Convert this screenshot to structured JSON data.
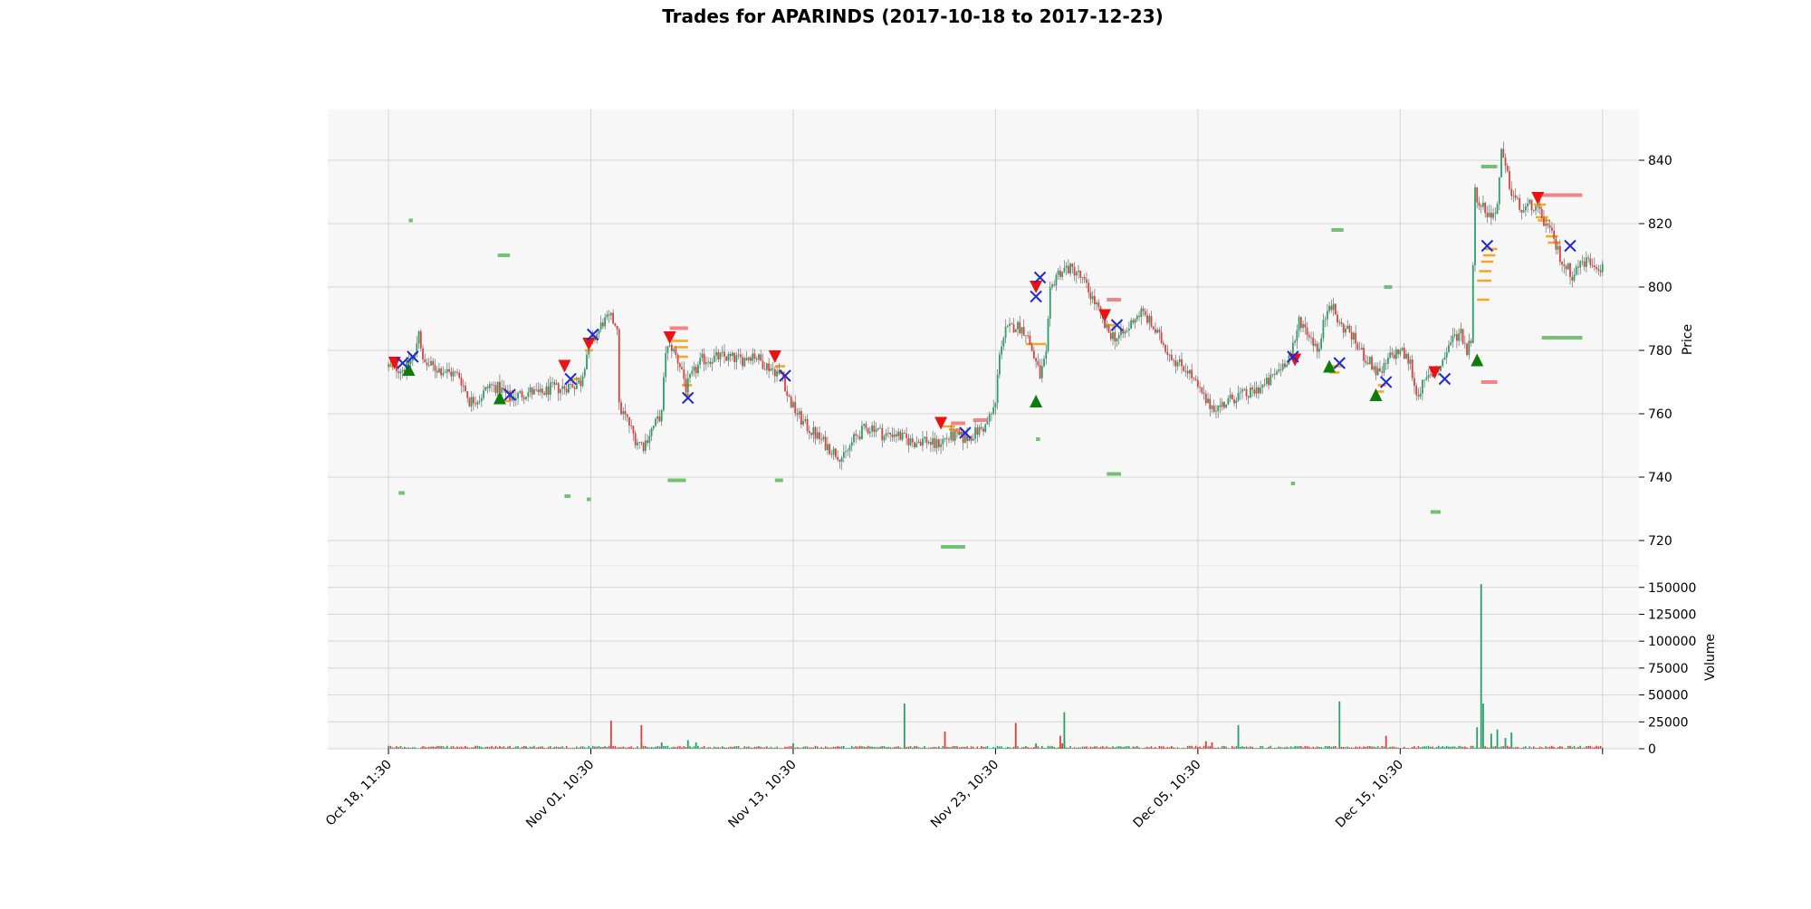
{
  "chart_data": {
    "type": "candlestick",
    "title": "Trades for APARINDS (2017-10-18 to 2017-12-23)",
    "price_panel": {
      "ylabel": "Price",
      "yticks": [
        720,
        740,
        760,
        780,
        800,
        820,
        840
      ],
      "ylim": [
        712,
        856
      ],
      "grid": true
    },
    "volume_panel": {
      "ylabel": "Volume",
      "yticks": [
        0,
        25000,
        50000,
        75000,
        100000,
        125000,
        150000
      ],
      "ylim": [
        0,
        170000
      ],
      "grid": true
    },
    "x_ticks": [
      {
        "index": 0,
        "label": "Oct 18, 11:30"
      },
      {
        "index": 100,
        "label": "Nov 01, 10:30"
      },
      {
        "index": 200,
        "label": "Nov 13, 10:30"
      },
      {
        "index": 300,
        "label": "Nov 23, 10:30"
      },
      {
        "index": 400,
        "label": "Dec 05, 10:30"
      },
      {
        "index": 500,
        "label": "Dec 15, 10:30"
      },
      {
        "index": 600,
        "label": ""
      }
    ],
    "xlim": [
      -30,
      618
    ],
    "price_path": [
      [
        0,
        775
      ],
      [
        8,
        774
      ],
      [
        10,
        776
      ],
      [
        13,
        778
      ],
      [
        15,
        787
      ],
      [
        17,
        776
      ],
      [
        25,
        774
      ],
      [
        35,
        772
      ],
      [
        40,
        764
      ],
      [
        45,
        765
      ],
      [
        50,
        769
      ],
      [
        55,
        768
      ],
      [
        60,
        765
      ],
      [
        65,
        766
      ],
      [
        70,
        767
      ],
      [
        75,
        766
      ],
      [
        80,
        768
      ],
      [
        85,
        768
      ],
      [
        90,
        769
      ],
      [
        95,
        770
      ],
      [
        98,
        779
      ],
      [
        102,
        784
      ],
      [
        106,
        789
      ],
      [
        110,
        790
      ],
      [
        113,
        788
      ],
      [
        114,
        762
      ],
      [
        118,
        758
      ],
      [
        122,
        752
      ],
      [
        126,
        750
      ],
      [
        130,
        755
      ],
      [
        135,
        760
      ],
      [
        137,
        780
      ],
      [
        140,
        781
      ],
      [
        145,
        774
      ],
      [
        147,
        768
      ],
      [
        150,
        772
      ],
      [
        155,
        777
      ],
      [
        165,
        778
      ],
      [
        175,
        777
      ],
      [
        180,
        779
      ],
      [
        185,
        776
      ],
      [
        190,
        774
      ],
      [
        195,
        772
      ],
      [
        197,
        766
      ],
      [
        200,
        762
      ],
      [
        205,
        757
      ],
      [
        210,
        754
      ],
      [
        215,
        751
      ],
      [
        220,
        748
      ],
      [
        225,
        746
      ],
      [
        230,
        752
      ],
      [
        235,
        755
      ],
      [
        240,
        756
      ],
      [
        245,
        753
      ],
      [
        250,
        754
      ],
      [
        255,
        752
      ],
      [
        260,
        751
      ],
      [
        265,
        752
      ],
      [
        270,
        750
      ],
      [
        275,
        752
      ],
      [
        280,
        753
      ],
      [
        285,
        752
      ],
      [
        290,
        754
      ],
      [
        295,
        756
      ],
      [
        298,
        760
      ],
      [
        300,
        763
      ],
      [
        302,
        780
      ],
      [
        305,
        786
      ],
      [
        310,
        788
      ],
      [
        315,
        786
      ],
      [
        318,
        780
      ],
      [
        320,
        776
      ],
      [
        322,
        772
      ],
      [
        325,
        778
      ],
      [
        327,
        798
      ],
      [
        330,
        804
      ],
      [
        335,
        806
      ],
      [
        340,
        805
      ],
      [
        345,
        800
      ],
      [
        350,
        794
      ],
      [
        355,
        786
      ],
      [
        360,
        784
      ],
      [
        365,
        786
      ],
      [
        368,
        790
      ],
      [
        372,
        792
      ],
      [
        375,
        790
      ],
      [
        380,
        785
      ],
      [
        385,
        780
      ],
      [
        390,
        776
      ],
      [
        395,
        774
      ],
      [
        400,
        768
      ],
      [
        405,
        763
      ],
      [
        410,
        762
      ],
      [
        415,
        764
      ],
      [
        420,
        766
      ],
      [
        425,
        766
      ],
      [
        430,
        768
      ],
      [
        435,
        770
      ],
      [
        440,
        774
      ],
      [
        445,
        778
      ],
      [
        448,
        782
      ],
      [
        450,
        790
      ],
      [
        455,
        785
      ],
      [
        460,
        780
      ],
      [
        462,
        788
      ],
      [
        465,
        796
      ],
      [
        470,
        788
      ],
      [
        475,
        786
      ],
      [
        480,
        780
      ],
      [
        485,
        776
      ],
      [
        490,
        772
      ],
      [
        495,
        778
      ],
      [
        500,
        780
      ],
      [
        505,
        776
      ],
      [
        508,
        766
      ],
      [
        510,
        768
      ],
      [
        515,
        772
      ],
      [
        520,
        775
      ],
      [
        525,
        783
      ],
      [
        530,
        786
      ],
      [
        533,
        780
      ],
      [
        535,
        784
      ],
      [
        537,
        830
      ],
      [
        540,
        826
      ],
      [
        545,
        822
      ],
      [
        548,
        826
      ],
      [
        550,
        842
      ],
      [
        555,
        830
      ],
      [
        560,
        824
      ],
      [
        565,
        826
      ],
      [
        570,
        822
      ],
      [
        575,
        816
      ],
      [
        580,
        808
      ],
      [
        585,
        804
      ],
      [
        590,
        808
      ],
      [
        595,
        808
      ],
      [
        600,
        806
      ]
    ],
    "volume_spikes": [
      [
        110,
        26000,
        "down"
      ],
      [
        125,
        22000,
        "down"
      ],
      [
        255,
        42000,
        "up"
      ],
      [
        275,
        16000,
        "down"
      ],
      [
        310,
        24000,
        "down"
      ],
      [
        332,
        12000,
        "down"
      ],
      [
        334,
        8000,
        "up"
      ],
      [
        333,
        5000,
        "down"
      ],
      [
        334,
        34000,
        "up"
      ],
      [
        420,
        22000,
        "up"
      ],
      [
        404,
        7000,
        "down"
      ],
      [
        407,
        6000,
        "down"
      ],
      [
        470,
        44000,
        "up"
      ],
      [
        493,
        12000,
        "down"
      ],
      [
        538,
        20000,
        "up"
      ],
      [
        540,
        153000,
        "up"
      ],
      [
        541,
        42000,
        "up"
      ],
      [
        545,
        14000,
        "up"
      ],
      [
        548,
        18000,
        "up"
      ],
      [
        552,
        10000,
        "up"
      ],
      [
        555,
        15000,
        "up"
      ],
      [
        68,
        2000,
        "up"
      ],
      [
        200,
        5000,
        "up"
      ],
      [
        135,
        6000,
        "up"
      ],
      [
        148,
        8000,
        "up"
      ],
      [
        152,
        6000,
        "up"
      ],
      [
        320,
        5000,
        "up"
      ]
    ],
    "markers": {
      "sell_entry": [
        [
          3,
          776
        ],
        [
          87,
          775
        ],
        [
          99,
          782
        ],
        [
          139,
          784
        ],
        [
          191,
          778
        ],
        [
          273,
          757
        ],
        [
          320,
          800
        ],
        [
          354,
          791
        ],
        [
          448,
          777
        ],
        [
          517,
          773
        ],
        [
          568,
          828
        ]
      ],
      "buy_entry": [
        [
          10,
          774
        ],
        [
          55,
          765
        ],
        [
          320,
          764
        ],
        [
          465,
          775
        ],
        [
          488,
          766
        ],
        [
          538,
          777
        ]
      ],
      "exit": [
        [
          7,
          776
        ],
        [
          12,
          778
        ],
        [
          60,
          766
        ],
        [
          90,
          771
        ],
        [
          101,
          785
        ],
        [
          148,
          765
        ],
        [
          196,
          772
        ],
        [
          285,
          754
        ],
        [
          320,
          797
        ],
        [
          322,
          803
        ],
        [
          360,
          788
        ],
        [
          447,
          778
        ],
        [
          470,
          776
        ],
        [
          493,
          770
        ],
        [
          522,
          771
        ],
        [
          543,
          813
        ],
        [
          584,
          813
        ]
      ]
    },
    "order_levels": {
      "green": [
        [
          5,
          8,
          735
        ],
        [
          10,
          12,
          821
        ],
        [
          54,
          60,
          810
        ],
        [
          87,
          90,
          734
        ],
        [
          98,
          100,
          733
        ],
        [
          138,
          147,
          739
        ],
        [
          191,
          195,
          739
        ],
        [
          273,
          285,
          718
        ],
        [
          320,
          322,
          752
        ],
        [
          355,
          362,
          741
        ],
        [
          446,
          448,
          738
        ],
        [
          466,
          472,
          818
        ],
        [
          492,
          496,
          800
        ],
        [
          515,
          520,
          729
        ],
        [
          540,
          548,
          838
        ],
        [
          570,
          590,
          784
        ]
      ],
      "red": [
        [
          139,
          148,
          787
        ],
        [
          278,
          285,
          757
        ],
        [
          289,
          296,
          758
        ],
        [
          355,
          362,
          796
        ],
        [
          540,
          548,
          770
        ],
        [
          568,
          590,
          829
        ]
      ],
      "orange": [
        [
          0,
          5,
          775
        ],
        [
          55,
          60,
          764
        ],
        [
          90,
          95,
          771
        ],
        [
          97,
          101,
          780
        ],
        [
          140,
          148,
          783
        ],
        [
          141,
          148,
          781
        ],
        [
          143,
          148,
          778
        ],
        [
          145,
          150,
          769
        ],
        [
          146,
          150,
          766
        ],
        [
          191,
          196,
          775
        ],
        [
          192,
          196,
          773
        ],
        [
          273,
          280,
          756
        ],
        [
          277,
          283,
          755
        ],
        [
          281,
          286,
          754
        ],
        [
          315,
          325,
          782
        ],
        [
          354,
          359,
          788
        ],
        [
          465,
          470,
          773
        ],
        [
          466,
          472,
          775
        ],
        [
          488,
          492,
          767
        ],
        [
          489,
          493,
          769
        ],
        [
          538,
          544,
          796
        ],
        [
          538,
          545,
          802
        ],
        [
          539,
          545,
          805
        ],
        [
          540,
          546,
          808
        ],
        [
          541,
          547,
          810
        ],
        [
          542,
          548,
          812
        ],
        [
          566,
          572,
          826
        ],
        [
          567,
          573,
          822
        ],
        [
          568,
          574,
          821
        ],
        [
          572,
          578,
          816
        ],
        [
          573,
          579,
          814
        ]
      ]
    }
  }
}
